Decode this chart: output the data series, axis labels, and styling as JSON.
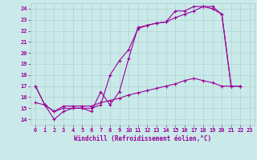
{
  "xlabel": "Windchill (Refroidissement éolien,°C)",
  "bg_color": "#caeaea",
  "line_color": "#990099",
  "grid_color": "#aacccc",
  "xlim": [
    -0.5,
    23.5
  ],
  "ylim": [
    13.5,
    24.5
  ],
  "xticks": [
    0,
    1,
    2,
    3,
    4,
    5,
    6,
    7,
    8,
    9,
    10,
    11,
    12,
    13,
    14,
    15,
    16,
    17,
    18,
    19,
    20,
    21,
    22,
    23
  ],
  "yticks": [
    14,
    15,
    16,
    17,
    18,
    19,
    20,
    21,
    22,
    23,
    24
  ],
  "line1_x": [
    0,
    1,
    2,
    3,
    4,
    5,
    6,
    7,
    8,
    9,
    10,
    11,
    12,
    13,
    14,
    15,
    16,
    17,
    18,
    19,
    20,
    21,
    22
  ],
  "line1_y": [
    17.0,
    15.3,
    14.0,
    14.7,
    15.0,
    15.0,
    14.7,
    16.5,
    15.3,
    16.5,
    19.5,
    22.3,
    22.5,
    22.7,
    22.8,
    23.8,
    23.8,
    24.2,
    24.2,
    24.0,
    23.5,
    17.0,
    17.0
  ],
  "line2_x": [
    0,
    1,
    2,
    3,
    4,
    5,
    6,
    7,
    8,
    9,
    10,
    11,
    12,
    13,
    14,
    15,
    16,
    17,
    18,
    19,
    20,
    21,
    22
  ],
  "line2_y": [
    17.0,
    15.3,
    14.7,
    15.0,
    15.0,
    15.0,
    15.0,
    15.3,
    18.0,
    19.3,
    20.3,
    22.2,
    22.5,
    22.7,
    22.8,
    23.2,
    23.5,
    23.8,
    24.2,
    24.2,
    23.5,
    17.0,
    17.0
  ],
  "line3_x": [
    0,
    1,
    2,
    3,
    4,
    5,
    6,
    7,
    8,
    9,
    10,
    11,
    12,
    13,
    14,
    15,
    16,
    17,
    18,
    19,
    20,
    21,
    22
  ],
  "line3_y": [
    15.5,
    15.3,
    14.7,
    15.2,
    15.2,
    15.2,
    15.2,
    15.5,
    15.7,
    15.9,
    16.2,
    16.4,
    16.6,
    16.8,
    17.0,
    17.2,
    17.5,
    17.7,
    17.5,
    17.3,
    17.0,
    17.0,
    17.0
  ]
}
